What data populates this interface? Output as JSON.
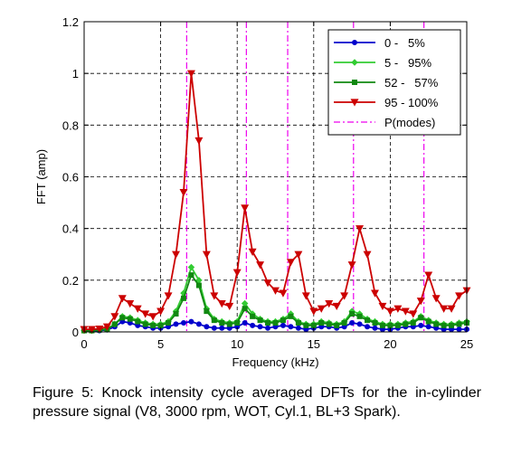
{
  "caption": "Figure 5: Knock intensity cycle averaged DFTs for the in-cylinder pressure signal (V8, 3000 rpm, WOT, Cyl.1, BL+3 Spark).",
  "chart_data": {
    "type": "line",
    "xlabel": "Frequency (kHz)",
    "ylabel": "FFT (amp)",
    "xlim": [
      0,
      25
    ],
    "ylim": [
      0,
      1.2
    ],
    "xticks": [
      0,
      5,
      10,
      15,
      20,
      25
    ],
    "yticks": [
      0,
      0.2,
      0.4,
      0.6,
      0.8,
      1,
      1.2
    ],
    "ytick_labels": [
      "0",
      "0.2",
      "0.4",
      "0.6",
      "0.8",
      "1",
      "1.2"
    ],
    "grid": true,
    "legend_position": "top-right",
    "x": [
      0,
      0.5,
      1,
      1.5,
      2,
      2.5,
      3,
      3.5,
      4,
      4.5,
      5,
      5.5,
      6,
      6.5,
      7,
      7.5,
      8,
      8.5,
      9,
      9.5,
      10,
      10.5,
      11,
      11.5,
      12,
      12.5,
      13,
      13.5,
      14,
      14.5,
      15,
      15.5,
      16,
      16.5,
      17,
      17.5,
      18,
      18.5,
      19,
      19.5,
      20,
      20.5,
      21,
      21.5,
      22,
      22.5,
      23,
      23.5,
      24,
      24.5,
      25
    ],
    "series": [
      {
        "name": "0 -   5%",
        "color": "#0000cc",
        "marker": "circle",
        "values": [
          0.005,
          0.005,
          0.005,
          0.008,
          0.02,
          0.04,
          0.035,
          0.025,
          0.02,
          0.015,
          0.015,
          0.02,
          0.03,
          0.035,
          0.04,
          0.03,
          0.02,
          0.015,
          0.015,
          0.015,
          0.02,
          0.035,
          0.025,
          0.02,
          0.015,
          0.02,
          0.025,
          0.02,
          0.015,
          0.01,
          0.015,
          0.02,
          0.02,
          0.015,
          0.02,
          0.035,
          0.03,
          0.02,
          0.015,
          0.01,
          0.01,
          0.015,
          0.02,
          0.02,
          0.025,
          0.02,
          0.015,
          0.01,
          0.01,
          0.01,
          0.01
        ]
      },
      {
        "name": "5 -   95%",
        "color": "#33cc33",
        "marker": "diamond",
        "values": [
          0.005,
          0.005,
          0.008,
          0.01,
          0.03,
          0.06,
          0.055,
          0.045,
          0.035,
          0.03,
          0.03,
          0.04,
          0.08,
          0.15,
          0.25,
          0.2,
          0.09,
          0.05,
          0.04,
          0.035,
          0.04,
          0.11,
          0.07,
          0.05,
          0.04,
          0.04,
          0.05,
          0.07,
          0.04,
          0.03,
          0.03,
          0.04,
          0.035,
          0.03,
          0.04,
          0.08,
          0.07,
          0.05,
          0.04,
          0.03,
          0.03,
          0.03,
          0.035,
          0.04,
          0.06,
          0.045,
          0.035,
          0.03,
          0.03,
          0.035,
          0.04
        ]
      },
      {
        "name": "52 -   57%",
        "color": "#118811",
        "marker": "square",
        "values": [
          0.005,
          0.005,
          0.008,
          0.01,
          0.03,
          0.055,
          0.05,
          0.04,
          0.03,
          0.025,
          0.025,
          0.035,
          0.07,
          0.13,
          0.22,
          0.18,
          0.08,
          0.045,
          0.035,
          0.03,
          0.035,
          0.09,
          0.06,
          0.045,
          0.035,
          0.035,
          0.045,
          0.06,
          0.035,
          0.025,
          0.025,
          0.035,
          0.03,
          0.025,
          0.035,
          0.07,
          0.06,
          0.045,
          0.035,
          0.025,
          0.025,
          0.025,
          0.03,
          0.035,
          0.055,
          0.04,
          0.03,
          0.025,
          0.025,
          0.03,
          0.035
        ]
      },
      {
        "name": "95 - 100%",
        "color": "#cc0000",
        "marker": "triangle-down",
        "values": [
          0.01,
          0.01,
          0.012,
          0.02,
          0.06,
          0.13,
          0.11,
          0.09,
          0.07,
          0.06,
          0.08,
          0.14,
          0.3,
          0.54,
          1.0,
          0.74,
          0.3,
          0.14,
          0.11,
          0.1,
          0.23,
          0.48,
          0.31,
          0.26,
          0.19,
          0.16,
          0.15,
          0.27,
          0.3,
          0.14,
          0.08,
          0.09,
          0.11,
          0.1,
          0.14,
          0.26,
          0.4,
          0.3,
          0.15,
          0.1,
          0.08,
          0.09,
          0.08,
          0.07,
          0.12,
          0.22,
          0.13,
          0.09,
          0.09,
          0.14,
          0.16
        ]
      },
      {
        "name": "P(modes)",
        "color": "#ee00ee",
        "style": "dash-dot",
        "vlines": [
          6.7,
          10.6,
          13.3,
          17.6,
          22.2
        ]
      }
    ]
  }
}
